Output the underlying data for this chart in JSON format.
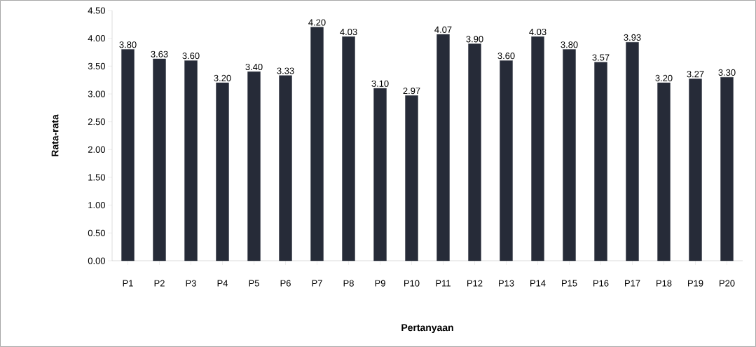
{
  "chart_data": {
    "type": "bar",
    "xlabel": "Pertanyaan",
    "ylabel": "Rata-rata",
    "categories": [
      "P1",
      "P2",
      "P3",
      "P4",
      "P5",
      "P6",
      "P7",
      "P8",
      "P9",
      "P10",
      "P11",
      "P12",
      "P13",
      "P14",
      "P15",
      "P16",
      "P17",
      "P18",
      "P19",
      "P20"
    ],
    "values": [
      3.8,
      3.63,
      3.6,
      3.2,
      3.4,
      3.33,
      4.2,
      4.03,
      3.1,
      2.97,
      4.07,
      3.9,
      3.6,
      4.03,
      3.8,
      3.57,
      3.93,
      3.2,
      3.27,
      3.3
    ],
    "value_labels": [
      "3.80",
      "3.63",
      "3.60",
      "3.20",
      "3.40",
      "3.33",
      "4.20",
      "4.03",
      "3.10",
      "2.97",
      "4.07",
      "3.90",
      "3.60",
      "4.03",
      "3.80",
      "3.57",
      "3.93",
      "3.20",
      "3.27",
      "3.30"
    ],
    "color": "#262b38",
    "ylim": [
      0,
      4.5
    ],
    "yticks": [
      {
        "value": 0,
        "label": "0.00"
      },
      {
        "value": 0.5,
        "label": "0.50"
      },
      {
        "value": 1,
        "label": "1.00"
      },
      {
        "value": 1.5,
        "label": "1.50"
      },
      {
        "value": 2,
        "label": "2.00"
      },
      {
        "value": 2.5,
        "label": "2.50"
      },
      {
        "value": 3,
        "label": "3.00"
      },
      {
        "value": 3.5,
        "label": "3.50"
      },
      {
        "value": 4,
        "label": "4.00"
      },
      {
        "value": 4.5,
        "label": "4.50"
      }
    ],
    "grid": false
  }
}
